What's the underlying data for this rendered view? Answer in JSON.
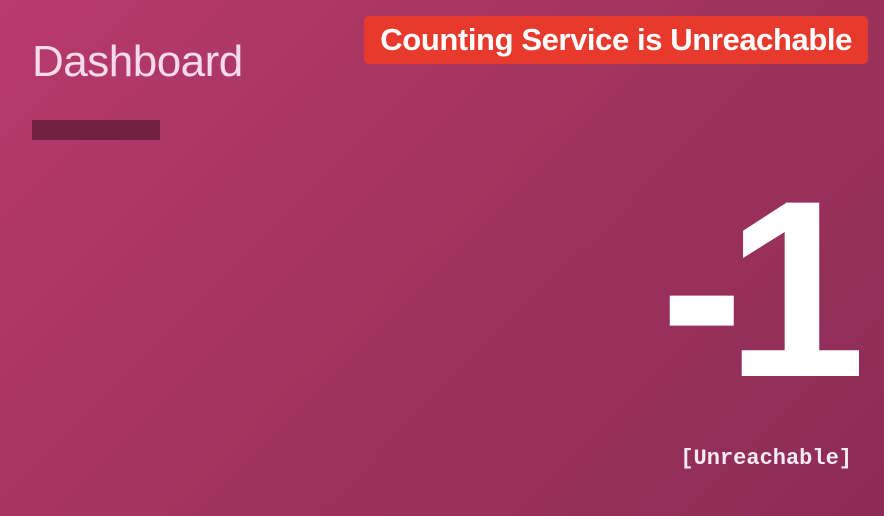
{
  "header": {
    "title": "Dashboard"
  },
  "banner": {
    "message": "Counting Service is Unreachable",
    "color": "#e83a2c"
  },
  "counter": {
    "value": "-1",
    "status": "[Unreachable]"
  },
  "theme": {
    "background_start": "#b83a6e",
    "background_end": "#8b2c56",
    "underline_color": "#72213f"
  }
}
